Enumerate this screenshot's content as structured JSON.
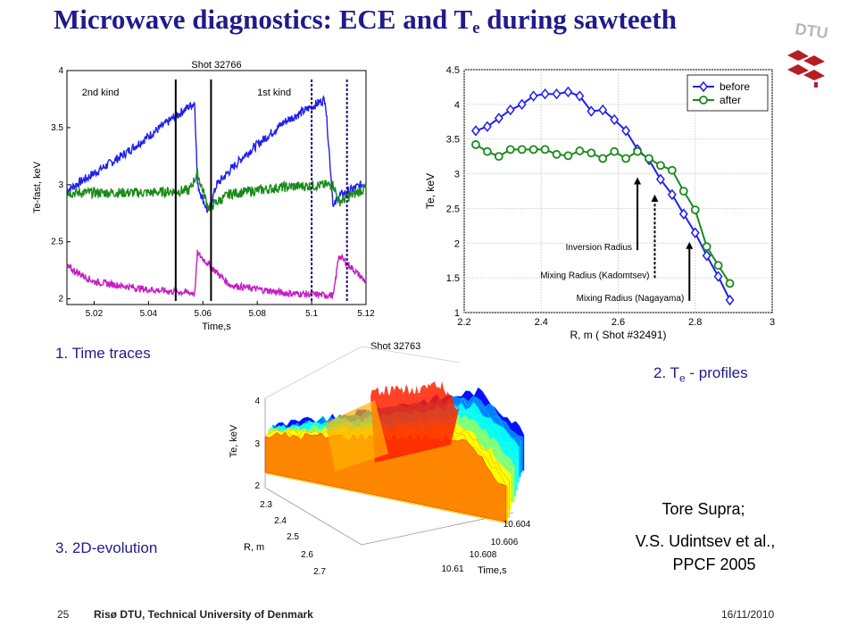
{
  "slide": {
    "title_main": "Microwave diagnostics: ECE and T",
    "title_sub": "e",
    "title_tail": " during sawteeth",
    "logo_text": "DTU",
    "caption1": "1. Time traces",
    "caption2_main": "2. T",
    "caption2_sub": "e",
    "caption2_tail": " - profiles",
    "caption3": "3. 2D-evolution",
    "ref_line1": "Tore Supra;",
    "ref_line2": "V.S. Udintsev et al.,",
    "ref_line3": "PPCF 2005",
    "footer_page": "25",
    "footer_org": "Risø DTU, Technical University of Denmark",
    "footer_date": "16/11/2010"
  },
  "chart_data": [
    {
      "type": "line",
      "title": "Shot 32766",
      "xlabel": "Time,s",
      "ylabel": "Te-fast, keV",
      "xlim": [
        5.01,
        5.12
      ],
      "ylim": [
        1.95,
        4.0
      ],
      "xticks": [
        "5.02",
        "5.04",
        "5.06",
        "5.08",
        "5.1",
        "5.12"
      ],
      "yticks": [
        "2",
        "2.5",
        "3",
        "3.5",
        "4"
      ],
      "annotations": [
        "2nd kind",
        "1st kind"
      ],
      "series": [
        {
          "color": "#1f1ff0",
          "x": [
            5.01,
            5.03,
            5.05,
            5.057,
            5.058,
            5.062,
            5.065,
            5.075,
            5.09,
            5.105,
            5.108,
            5.11,
            5.12
          ],
          "y": [
            2.95,
            3.25,
            3.6,
            3.72,
            3.0,
            2.75,
            3.0,
            3.25,
            3.55,
            3.75,
            2.8,
            2.9,
            3.02
          ]
        },
        {
          "color": "#1a8a1a",
          "x": [
            5.01,
            5.04,
            5.055,
            5.058,
            5.062,
            5.07,
            5.09,
            5.108,
            5.11,
            5.12
          ],
          "y": [
            2.93,
            2.93,
            2.95,
            3.1,
            2.8,
            2.92,
            2.98,
            3.0,
            2.85,
            2.97
          ]
        },
        {
          "color": "#c21fc2",
          "x": [
            5.01,
            5.02,
            5.04,
            5.057,
            5.058,
            5.063,
            5.07,
            5.09,
            5.108,
            5.11,
            5.12
          ],
          "y": [
            2.28,
            2.15,
            2.08,
            2.05,
            2.4,
            2.28,
            2.12,
            2.05,
            2.03,
            2.38,
            2.15
          ]
        }
      ],
      "markers": [
        {
          "x": 5.05,
          "style": "solid"
        },
        {
          "x": 5.063,
          "style": "solid"
        },
        {
          "x": 5.1,
          "style": "dotted"
        },
        {
          "x": 5.113,
          "style": "dotted"
        }
      ]
    },
    {
      "type": "line",
      "xlabel": "R, m ( Shot #32491)",
      "ylabel": "Te, keV",
      "xlim": [
        2.2,
        3.0
      ],
      "ylim": [
        1.0,
        4.5
      ],
      "xticks": [
        "2.2",
        "2.4",
        "2.6",
        "2.8",
        "3"
      ],
      "yticks": [
        "1",
        "1.5",
        "2",
        "2.5",
        "3",
        "3.5",
        "4",
        "4.5"
      ],
      "legend": "top-right",
      "x": [
        2.23,
        2.26,
        2.29,
        2.32,
        2.35,
        2.38,
        2.41,
        2.44,
        2.47,
        2.5,
        2.53,
        2.56,
        2.59,
        2.62,
        2.65,
        2.68,
        2.71,
        2.74,
        2.77,
        2.8,
        2.83,
        2.86,
        2.89
      ],
      "series": [
        {
          "name": "before",
          "color": "#1f1ff0",
          "marker": "diamond",
          "y": [
            3.62,
            3.68,
            3.8,
            3.92,
            4.0,
            4.12,
            4.15,
            4.15,
            4.18,
            4.12,
            3.9,
            3.92,
            3.78,
            3.62,
            3.35,
            3.2,
            2.92,
            2.7,
            2.42,
            2.15,
            1.82,
            1.52,
            1.18
          ]
        },
        {
          "name": "after",
          "color": "#1a8a1a",
          "marker": "circle",
          "y": [
            3.42,
            3.32,
            3.25,
            3.35,
            3.35,
            3.35,
            3.35,
            3.28,
            3.26,
            3.33,
            3.3,
            3.22,
            3.32,
            3.22,
            3.32,
            3.22,
            3.12,
            3.05,
            2.75,
            2.48,
            1.95,
            1.68,
            1.42
          ]
        }
      ],
      "annotations": [
        {
          "text": "Inversion Radius",
          "x": 2.65,
          "style": "solid"
        },
        {
          "text": "Mixing Radius (Kadomtsev)",
          "x": 2.695,
          "style": "dotted"
        },
        {
          "text": "Mixing Radius (Nagayama)",
          "x": 2.785,
          "style": "solid"
        }
      ]
    },
    {
      "type": "surface",
      "title": "Shot 32763",
      "xlabel": "R, m",
      "ylabel": "Time,s",
      "zlabel": "Te, keV",
      "xticks": [
        "2.3",
        "2.4",
        "2.5",
        "2.6",
        "2.7"
      ],
      "yticks": [
        "10.604",
        "10.606",
        "10.608",
        "10.61"
      ],
      "zticks": [
        "2",
        "3",
        "4"
      ],
      "zlim": [
        2,
        4
      ]
    }
  ]
}
